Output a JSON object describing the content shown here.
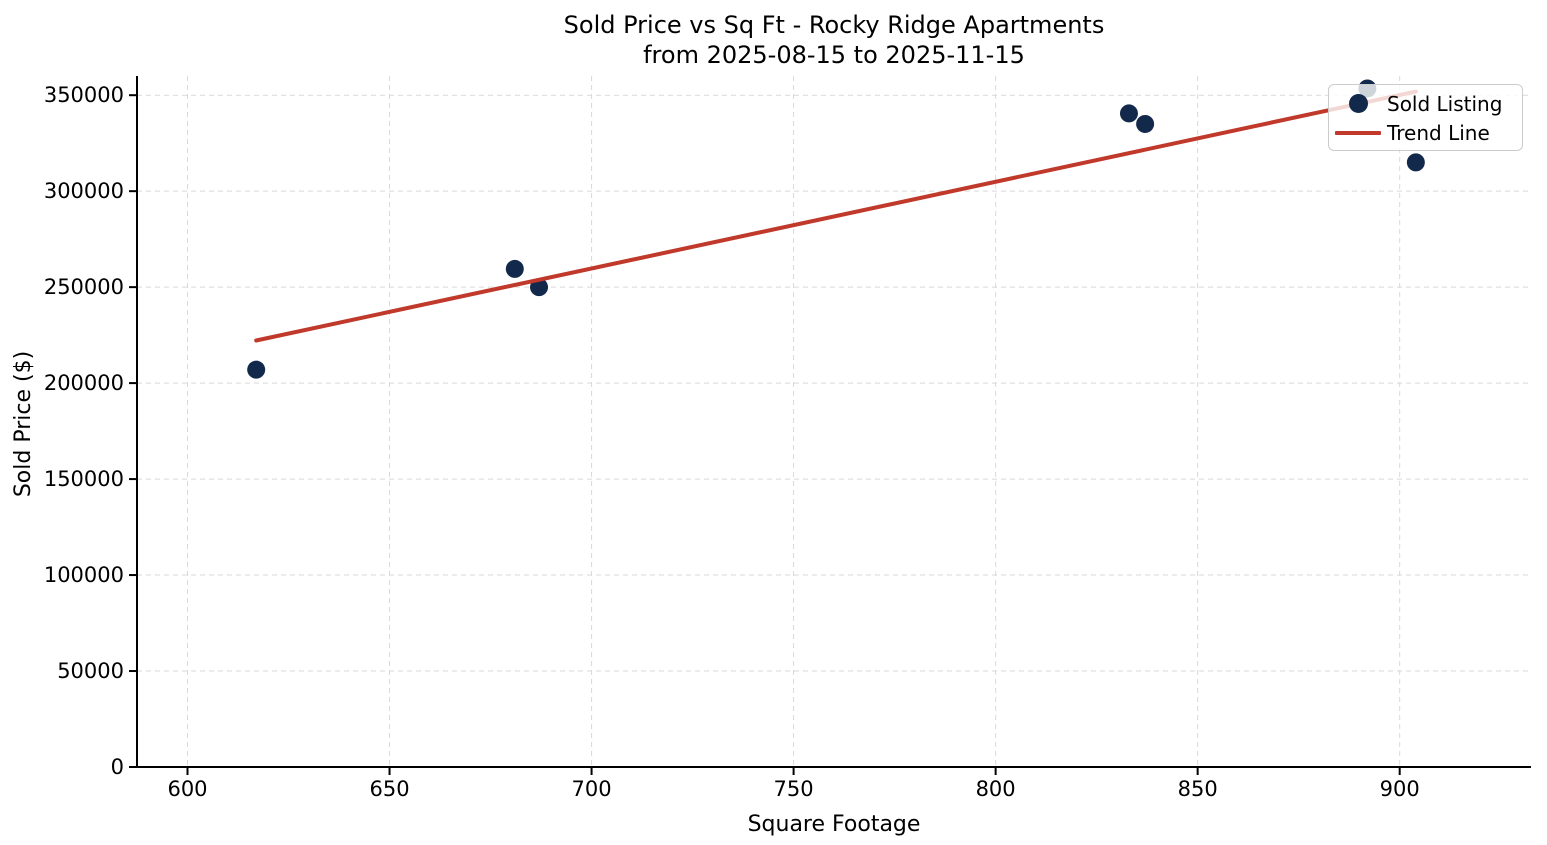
{
  "chart_data": {
    "type": "scatter",
    "title_line1": "Sold Price vs Sq Ft - Rocky Ridge Apartments",
    "title_line2": "from 2025-08-15 to 2025-11-15",
    "xlabel": "Square Footage",
    "ylabel": "Sold Price ($)",
    "xlim": [
      587.5,
      932.5
    ],
    "ylim": [
      0,
      360000
    ],
    "xticks": [
      600,
      650,
      700,
      750,
      800,
      850,
      900
    ],
    "yticks": [
      0,
      50000,
      100000,
      150000,
      200000,
      250000,
      300000,
      350000
    ],
    "grid": "both-dashed",
    "legend_position": "upper right",
    "legend": {
      "entries": [
        {
          "label": "Sold Listing",
          "type": "marker"
        },
        {
          "label": "Trend Line",
          "type": "line"
        }
      ]
    },
    "series": [
      {
        "name": "Sold Listing",
        "type": "scatter",
        "color": "#13294b",
        "points": [
          [
            617,
            207000
          ],
          [
            681,
            259500
          ],
          [
            687,
            250000
          ],
          [
            833,
            340500
          ],
          [
            837,
            335000
          ],
          [
            892,
            353500
          ],
          [
            904,
            315000
          ]
        ]
      },
      {
        "name": "Trend Line",
        "type": "line",
        "color": "#c0392b",
        "points": [
          [
            617,
            222200
          ],
          [
            904,
            351900
          ]
        ]
      }
    ],
    "colors": {
      "point": "#13294b",
      "trend": "#c0392b",
      "grid": "#d9d9d9",
      "spine": "#000000",
      "background": "#ffffff"
    }
  }
}
